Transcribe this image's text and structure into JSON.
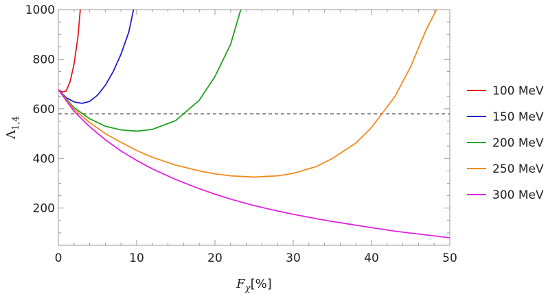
{
  "chart_data": {
    "type": "line",
    "xlabel": {
      "main": "F",
      "sub": "χ",
      "suffix": "[%]"
    },
    "ylabel": {
      "main": "Λ",
      "sub": "1,4"
    },
    "xlim": [
      0,
      50
    ],
    "ylim": [
      50,
      1000
    ],
    "x_ticks": [
      0,
      10,
      20,
      30,
      40,
      50
    ],
    "y_ticks": [
      200,
      400,
      600,
      800,
      1000
    ],
    "x_minor_step": 2,
    "y_minor_step": 50,
    "grid": false,
    "legend_position": "right",
    "reference_line": {
      "y": 580,
      "style": "dashed",
      "color": "#8c8c8c"
    },
    "series": [
      {
        "name": "100 MeV",
        "color": "#e31a1c",
        "x": [
          0,
          0.5,
          1,
          1.5,
          2,
          2.5,
          2.8
        ],
        "y": [
          677,
          668,
          672,
          710,
          780,
          890,
          1000
        ]
      },
      {
        "name": "150 MeV",
        "color": "#1f1fcf",
        "x": [
          0,
          1,
          2,
          3,
          4,
          5,
          6,
          7,
          8,
          9,
          9.6
        ],
        "y": [
          677,
          645,
          628,
          622,
          630,
          655,
          695,
          750,
          820,
          910,
          1000
        ]
      },
      {
        "name": "200 MeV",
        "color": "#1fa31f",
        "x": [
          0,
          2,
          4,
          6,
          8,
          10,
          12,
          15,
          18,
          20,
          22,
          23.3
        ],
        "y": [
          677,
          605,
          560,
          530,
          515,
          510,
          517,
          553,
          635,
          730,
          860,
          1000
        ]
      },
      {
        "name": "250 MeV",
        "color": "#f28a1c",
        "x": [
          0,
          2,
          4,
          6,
          8,
          10,
          12,
          15,
          18,
          20,
          22,
          25,
          28,
          30,
          33,
          35,
          38,
          40,
          43,
          45,
          47,
          48.3
        ],
        "y": [
          677,
          598,
          545,
          500,
          465,
          432,
          405,
          373,
          350,
          338,
          330,
          325,
          330,
          340,
          368,
          400,
          462,
          525,
          650,
          770,
          920,
          1000
        ]
      },
      {
        "name": "300 MeV",
        "color": "#e020e0",
        "x": [
          0,
          2,
          4,
          6,
          8,
          10,
          12,
          15,
          18,
          20,
          22,
          25,
          28,
          30,
          33,
          35,
          38,
          40,
          43,
          45,
          48,
          50
        ],
        "y": [
          677,
          590,
          528,
          475,
          430,
          392,
          358,
          315,
          278,
          256,
          236,
          210,
          188,
          175,
          157,
          146,
          131,
          121,
          107,
          99,
          88,
          80
        ]
      }
    ]
  }
}
